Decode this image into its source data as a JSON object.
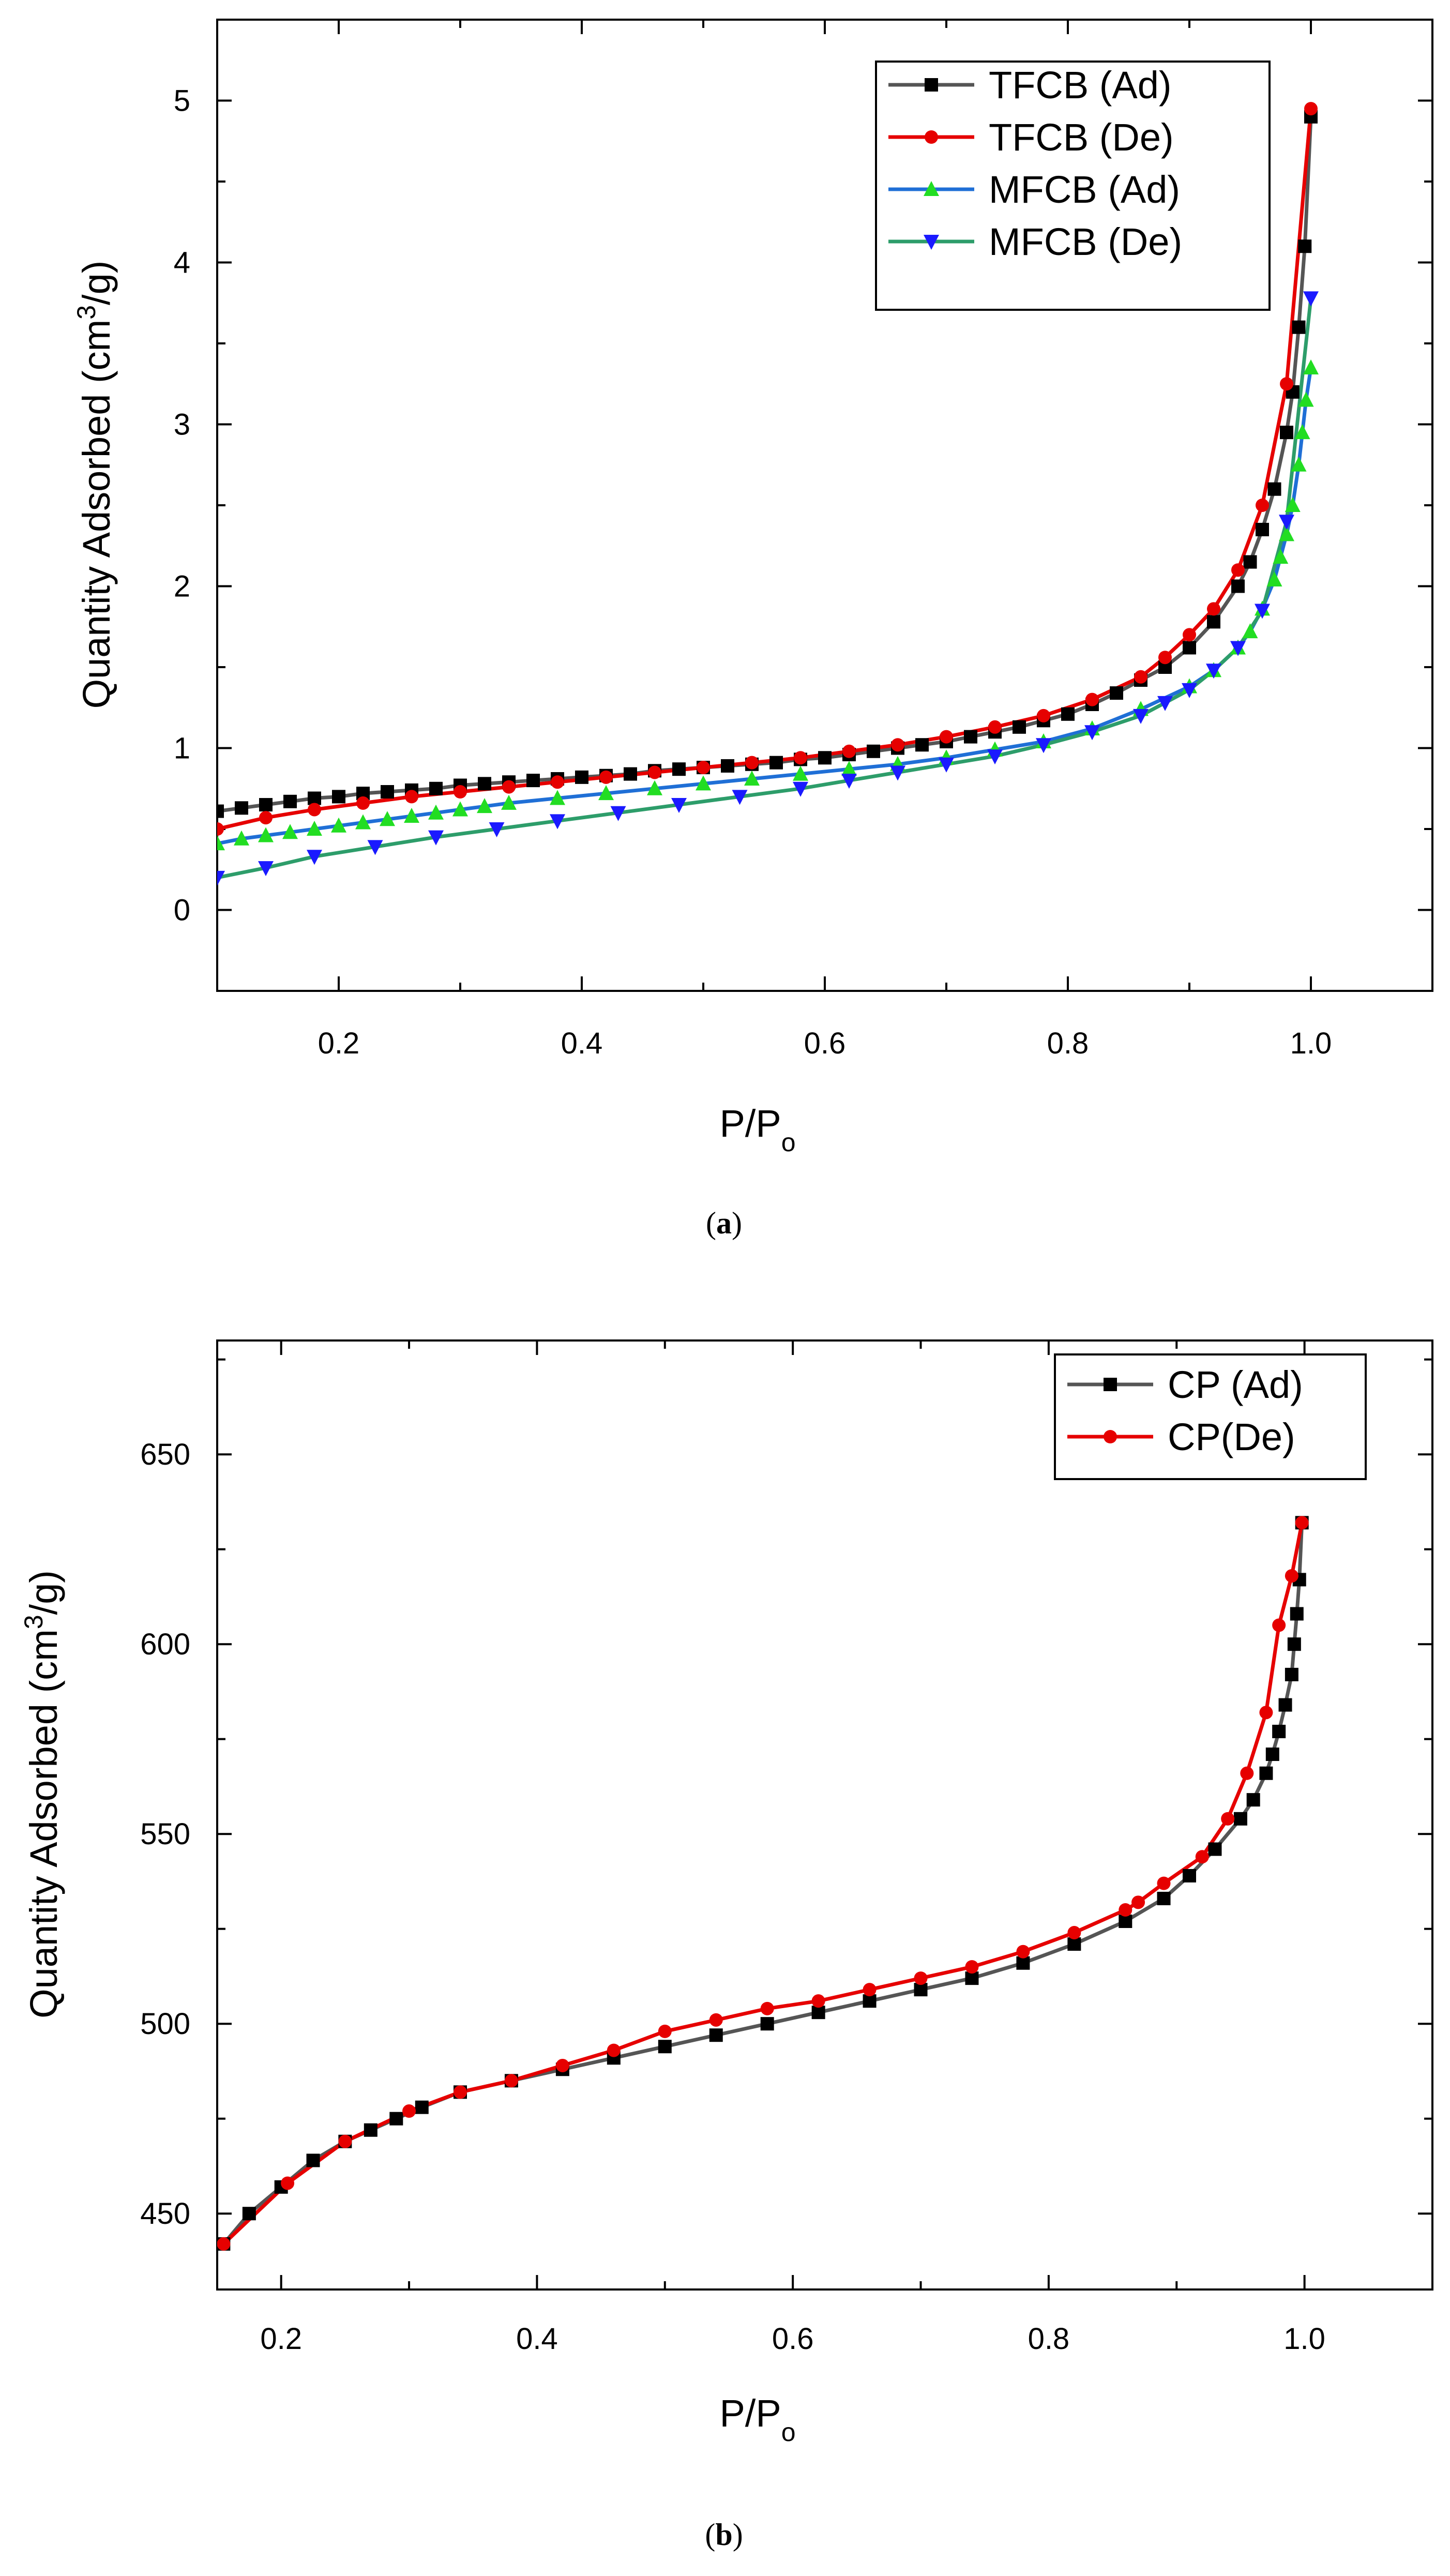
{
  "chart_data": [
    {
      "type": "line",
      "panel_label": "a",
      "xlabel": "P/P",
      "xlabel_sub": "o",
      "ylabel": "Quantity Adsorbed (cm",
      "ylabel_sup": "3",
      "ylabel_end": "/g)",
      "xlim": [
        0.1,
        1.1
      ],
      "ylim": [
        -0.5,
        5.5
      ],
      "xticks": [
        0.2,
        0.4,
        0.6,
        0.8,
        1.0
      ],
      "xtick_labels": [
        "0.2",
        "0.4",
        "0.6",
        "0.8",
        "1.0"
      ],
      "yticks": [
        0,
        1,
        2,
        3,
        4,
        5
      ],
      "ytick_labels": [
        "0",
        "1",
        "2",
        "3",
        "4",
        "5"
      ],
      "legend_position": "top-right",
      "series": [
        {
          "name": "TFCB (Ad)",
          "line_color": "#555555",
          "marker_color": "#000000",
          "marker": "square",
          "x": [
            0.1,
            0.12,
            0.14,
            0.16,
            0.18,
            0.2,
            0.22,
            0.24,
            0.26,
            0.28,
            0.3,
            0.32,
            0.34,
            0.36,
            0.38,
            0.4,
            0.42,
            0.44,
            0.46,
            0.48,
            0.5,
            0.52,
            0.54,
            0.56,
            0.58,
            0.6,
            0.62,
            0.64,
            0.66,
            0.68,
            0.7,
            0.72,
            0.74,
            0.76,
            0.78,
            0.8,
            0.82,
            0.84,
            0.86,
            0.88,
            0.9,
            0.92,
            0.94,
            0.95,
            0.96,
            0.97,
            0.98,
            0.985,
            0.99,
            0.995,
            1.0
          ],
          "y": [
            0.61,
            0.63,
            0.65,
            0.67,
            0.69,
            0.7,
            0.72,
            0.73,
            0.74,
            0.75,
            0.77,
            0.78,
            0.79,
            0.8,
            0.81,
            0.82,
            0.83,
            0.84,
            0.86,
            0.87,
            0.88,
            0.89,
            0.9,
            0.91,
            0.93,
            0.94,
            0.96,
            0.98,
            1.0,
            1.02,
            1.04,
            1.07,
            1.1,
            1.13,
            1.17,
            1.21,
            1.27,
            1.34,
            1.42,
            1.5,
            1.62,
            1.78,
            2.0,
            2.15,
            2.35,
            2.6,
            2.95,
            3.2,
            3.6,
            4.1,
            4.9
          ]
        },
        {
          "name": "TFCB (De)",
          "line_color": "#e60000",
          "marker_color": "#e60000",
          "marker": "circle",
          "x": [
            0.1,
            0.14,
            0.18,
            0.22,
            0.26,
            0.3,
            0.34,
            0.38,
            0.42,
            0.46,
            0.5,
            0.54,
            0.58,
            0.62,
            0.66,
            0.7,
            0.74,
            0.78,
            0.82,
            0.86,
            0.88,
            0.9,
            0.92,
            0.94,
            0.96,
            0.98,
            1.0
          ],
          "y": [
            0.5,
            0.57,
            0.62,
            0.66,
            0.7,
            0.73,
            0.76,
            0.79,
            0.82,
            0.85,
            0.88,
            0.91,
            0.94,
            0.98,
            1.02,
            1.07,
            1.13,
            1.2,
            1.3,
            1.44,
            1.56,
            1.7,
            1.86,
            2.1,
            2.5,
            3.25,
            4.95
          ]
        },
        {
          "name": "MFCB (Ad)",
          "line_color": "#1f6fd6",
          "marker_color": "#22dd22",
          "marker": "triangle-up",
          "x": [
            0.1,
            0.12,
            0.14,
            0.16,
            0.18,
            0.2,
            0.22,
            0.24,
            0.26,
            0.28,
            0.3,
            0.32,
            0.34,
            0.38,
            0.42,
            0.46,
            0.5,
            0.54,
            0.58,
            0.62,
            0.66,
            0.7,
            0.74,
            0.78,
            0.82,
            0.86,
            0.9,
            0.92,
            0.94,
            0.95,
            0.96,
            0.97,
            0.975,
            0.98,
            0.985,
            0.99,
            0.993,
            0.996,
            1.0
          ],
          "y": [
            0.41,
            0.44,
            0.46,
            0.48,
            0.5,
            0.52,
            0.54,
            0.56,
            0.58,
            0.6,
            0.62,
            0.64,
            0.66,
            0.69,
            0.72,
            0.75,
            0.78,
            0.81,
            0.84,
            0.87,
            0.9,
            0.94,
            0.99,
            1.04,
            1.12,
            1.24,
            1.38,
            1.48,
            1.62,
            1.72,
            1.86,
            2.04,
            2.18,
            2.32,
            2.5,
            2.75,
            2.95,
            3.15,
            3.35
          ]
        },
        {
          "name": "MFCB (De)",
          "line_color": "#2d9d6a",
          "marker_color": "#1a1aff",
          "marker": "triangle-down",
          "x": [
            0.1,
            0.14,
            0.18,
            0.23,
            0.28,
            0.33,
            0.38,
            0.43,
            0.48,
            0.53,
            0.58,
            0.62,
            0.66,
            0.7,
            0.74,
            0.78,
            0.82,
            0.86,
            0.88,
            0.9,
            0.92,
            0.94,
            0.96,
            0.98,
            1.0
          ],
          "y": [
            0.2,
            0.26,
            0.33,
            0.39,
            0.45,
            0.5,
            0.55,
            0.6,
            0.65,
            0.7,
            0.75,
            0.8,
            0.85,
            0.9,
            0.95,
            1.02,
            1.1,
            1.2,
            1.28,
            1.36,
            1.48,
            1.62,
            1.85,
            2.4,
            3.78
          ]
        }
      ]
    },
    {
      "type": "line",
      "panel_label": "b",
      "xlabel": "P/P",
      "xlabel_sub": "o",
      "ylabel": "Quantity Adsorbed (cm",
      "ylabel_sup": "3",
      "ylabel_end": "/g)",
      "xlim": [
        0.15,
        1.1
      ],
      "ylim": [
        430,
        680
      ],
      "xticks": [
        0.2,
        0.4,
        0.6,
        0.8,
        1.0
      ],
      "xtick_labels": [
        "0.2",
        "0.4",
        "0.6",
        "0.8",
        "1.0"
      ],
      "yticks": [
        450,
        500,
        550,
        600,
        650
      ],
      "ytick_labels": [
        "450",
        "500",
        "550",
        "600",
        "650"
      ],
      "legend_position": "top-right",
      "series": [
        {
          "name": "CP (Ad)",
          "line_color": "#555555",
          "marker_color": "#000000",
          "marker": "square",
          "x": [
            0.155,
            0.175,
            0.2,
            0.225,
            0.25,
            0.27,
            0.29,
            0.31,
            0.34,
            0.38,
            0.42,
            0.46,
            0.5,
            0.54,
            0.58,
            0.62,
            0.66,
            0.7,
            0.74,
            0.78,
            0.82,
            0.86,
            0.89,
            0.91,
            0.93,
            0.95,
            0.96,
            0.97,
            0.975,
            0.98,
            0.985,
            0.99,
            0.992,
            0.994,
            0.996,
            0.998
          ],
          "y": [
            442,
            450,
            457,
            464,
            469,
            472,
            475,
            478,
            482,
            485,
            488,
            491,
            494,
            497,
            500,
            503,
            506,
            509,
            512,
            516,
            521,
            527,
            533,
            539,
            546,
            554,
            559,
            566,
            571,
            577,
            584,
            592,
            600,
            608,
            617,
            632
          ]
        },
        {
          "name": "CP(De)",
          "line_color": "#e60000",
          "marker_color": "#e60000",
          "marker": "circle",
          "x": [
            0.155,
            0.205,
            0.25,
            0.3,
            0.34,
            0.38,
            0.42,
            0.46,
            0.5,
            0.54,
            0.58,
            0.62,
            0.66,
            0.7,
            0.74,
            0.78,
            0.82,
            0.86,
            0.87,
            0.89,
            0.92,
            0.94,
            0.955,
            0.97,
            0.98,
            0.99,
            0.998
          ],
          "y": [
            442,
            458,
            469,
            477,
            482,
            485,
            489,
            493,
            498,
            501,
            504,
            506,
            509,
            512,
            515,
            519,
            524,
            530,
            532,
            537,
            544,
            554,
            566,
            582,
            605,
            618,
            632
          ]
        }
      ]
    }
  ]
}
